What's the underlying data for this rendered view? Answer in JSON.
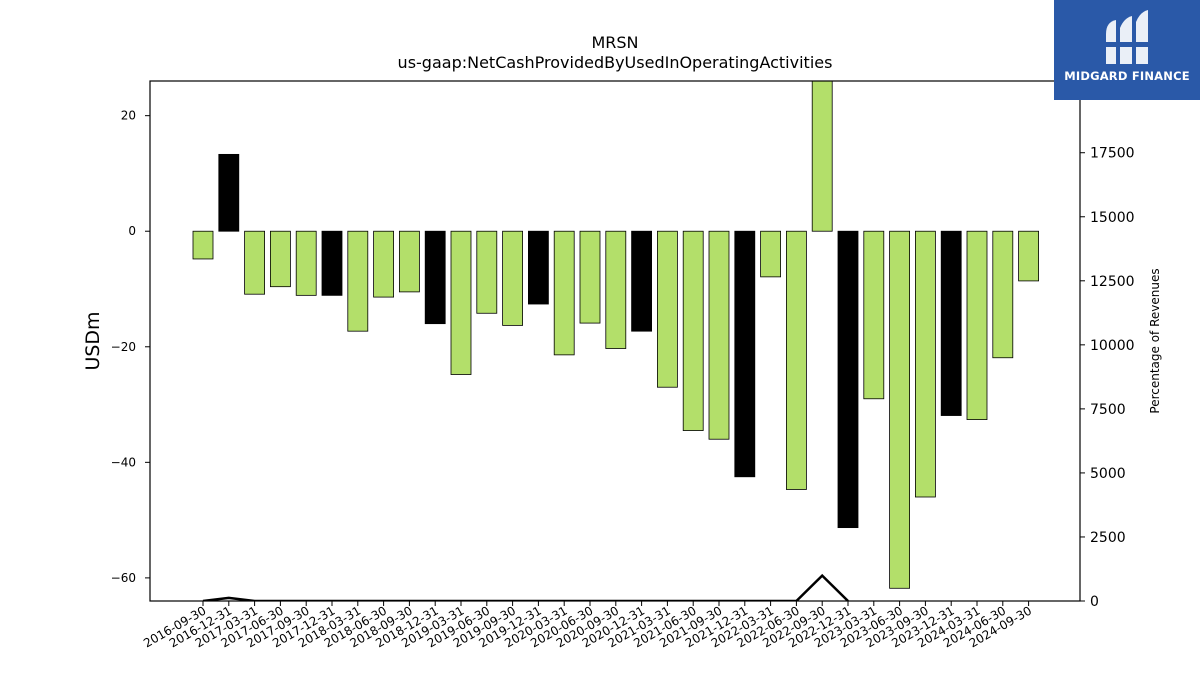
{
  "chart_data": {
    "type": "bar",
    "title": "MRSN",
    "subtitle": "us-gaap:NetCashProvidedByUsedInOperatingActivities",
    "ylabel": "USDm",
    "y2label": "Percentage of Revenues",
    "ylim": [
      -64,
      26
    ],
    "y2lim": [
      0,
      20300
    ],
    "yticks": [
      20,
      0,
      -20,
      -40,
      -60
    ],
    "y2ticks": [
      0,
      2500,
      5000,
      7500,
      10000,
      12500,
      15000,
      17500
    ],
    "grid": false,
    "categories": [
      "2016-09-30",
      "2016-12-31",
      "2017-03-31",
      "2017-06-30",
      "2017-09-30",
      "2017-12-31",
      "2018-03-31",
      "2018-06-30",
      "2018-09-30",
      "2018-12-31",
      "2019-03-31",
      "2019-06-30",
      "2019-09-30",
      "2019-12-31",
      "2020-03-31",
      "2020-06-30",
      "2020-09-30",
      "2020-12-31",
      "2021-03-31",
      "2021-06-30",
      "2021-09-30",
      "2021-12-31",
      "2022-03-31",
      "2022-06-30",
      "2022-09-30",
      "2022-12-31",
      "2023-03-31",
      "2023-06-30",
      "2023-09-30",
      "2023-12-31",
      "2024-03-31",
      "2024-06-30",
      "2024-09-30"
    ],
    "values": [
      -4.8,
      13.3,
      -10.9,
      -9.6,
      -11.1,
      -11.1,
      -17.3,
      -11.4,
      -10.5,
      -16.0,
      -24.8,
      -14.2,
      -16.3,
      -12.6,
      -21.4,
      -15.9,
      -20.3,
      -17.3,
      -27.0,
      -34.5,
      -36.0,
      -42.5,
      -7.9,
      -44.7,
      27.0,
      -51.3,
      -29.0,
      -61.8,
      -46.0,
      -31.9,
      -32.6,
      -21.9,
      -8.6
    ],
    "bar_colors": [
      "#b3df6a",
      "#000000",
      "#b3df6a",
      "#b3df6a",
      "#b3df6a",
      "#000000",
      "#b3df6a",
      "#b3df6a",
      "#b3df6a",
      "#000000",
      "#b3df6a",
      "#b3df6a",
      "#b3df6a",
      "#000000",
      "#b3df6a",
      "#b3df6a",
      "#b3df6a",
      "#000000",
      "#b3df6a",
      "#b3df6a",
      "#b3df6a",
      "#000000",
      "#b3df6a",
      "#b3df6a",
      "#b3df6a",
      "#000000",
      "#b3df6a",
      "#b3df6a",
      "#b3df6a",
      "#000000",
      "#b3df6a",
      "#b3df6a",
      "#b3df6a"
    ],
    "secondary_line": {
      "x": [
        "2016-09-30",
        "2016-12-31",
        "2017-03-31",
        "2022-06-30",
        "2022-09-30",
        "2022-12-31"
      ],
      "values": [
        0,
        120,
        0,
        0,
        990,
        0
      ]
    }
  },
  "logo": {
    "text": "MIDGARD FINANCE",
    "background": "#2a59a8"
  }
}
